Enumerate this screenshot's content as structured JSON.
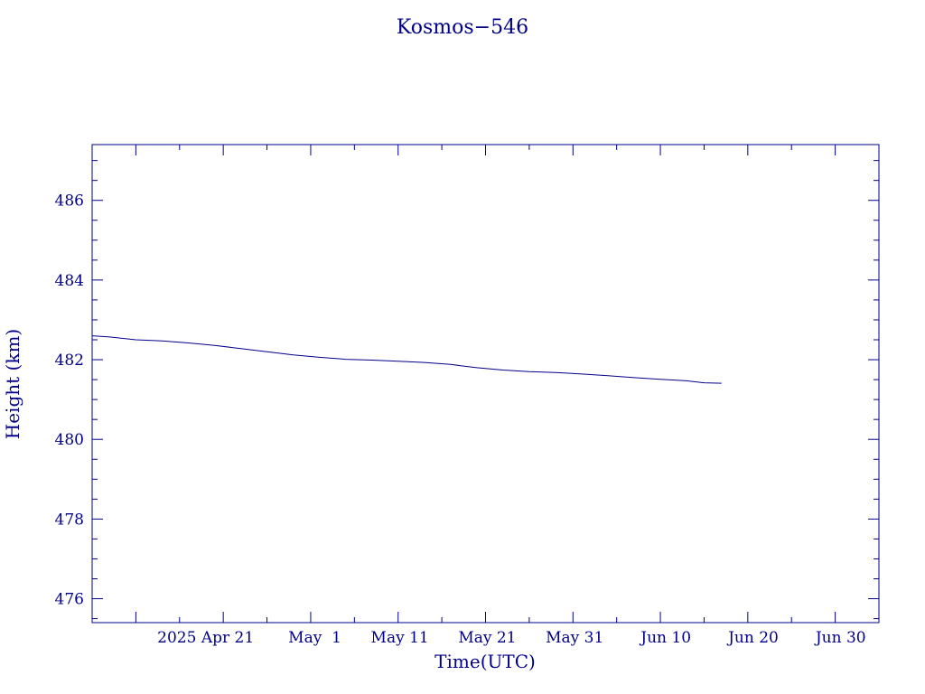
{
  "chart_data": {
    "type": "line",
    "title": "Kosmos−546",
    "xlabel": "Time(UTC)",
    "ylabel": "Height (km)",
    "color": "#00008b",
    "background": "#ffffff",
    "grid": false,
    "legend": "none",
    "xlim": [
      "2025-04-06",
      "2025-07-05"
    ],
    "ylim": [
      475.4,
      487.4
    ],
    "x_ticks": [
      {
        "date": "2025-04-21",
        "label": "2025 Apr 21"
      },
      {
        "date": "2025-05-01",
        "label": "May  1"
      },
      {
        "date": "2025-05-11",
        "label": "May 11"
      },
      {
        "date": "2025-05-21",
        "label": "May 21"
      },
      {
        "date": "2025-05-31",
        "label": "May 31"
      },
      {
        "date": "2025-06-10",
        "label": "Jun 10"
      },
      {
        "date": "2025-06-20",
        "label": "Jun 20"
      },
      {
        "date": "2025-06-30",
        "label": "Jun 30"
      }
    ],
    "y_ticks": [
      {
        "value": 476,
        "label": "476"
      },
      {
        "value": 478,
        "label": "478"
      },
      {
        "value": 480,
        "label": "480"
      },
      {
        "value": 482,
        "label": "482"
      },
      {
        "value": 484,
        "label": "484"
      },
      {
        "value": 486,
        "label": "486"
      }
    ],
    "series": [
      {
        "points": [
          {
            "x": "2025-04-06",
            "y": 482.6
          },
          {
            "x": "2025-04-08",
            "y": 482.57
          },
          {
            "x": "2025-04-11",
            "y": 482.5
          },
          {
            "x": "2025-04-14",
            "y": 482.47
          },
          {
            "x": "2025-04-17",
            "y": 482.42
          },
          {
            "x": "2025-04-20",
            "y": 482.36
          },
          {
            "x": "2025-04-23",
            "y": 482.28
          },
          {
            "x": "2025-04-26",
            "y": 482.2
          },
          {
            "x": "2025-04-29",
            "y": 482.12
          },
          {
            "x": "2025-05-02",
            "y": 482.06
          },
          {
            "x": "2025-05-05",
            "y": 482.01
          },
          {
            "x": "2025-05-08",
            "y": 481.99
          },
          {
            "x": "2025-05-11",
            "y": 481.96
          },
          {
            "x": "2025-05-14",
            "y": 481.93
          },
          {
            "x": "2025-05-17",
            "y": 481.88
          },
          {
            "x": "2025-05-20",
            "y": 481.8
          },
          {
            "x": "2025-05-23",
            "y": 481.74
          },
          {
            "x": "2025-05-26",
            "y": 481.7
          },
          {
            "x": "2025-05-29",
            "y": 481.68
          },
          {
            "x": "2025-06-01",
            "y": 481.64
          },
          {
            "x": "2025-06-04",
            "y": 481.6
          },
          {
            "x": "2025-06-07",
            "y": 481.55
          },
          {
            "x": "2025-06-10",
            "y": 481.51
          },
          {
            "x": "2025-06-13",
            "y": 481.47
          },
          {
            "x": "2025-06-15",
            "y": 481.42
          },
          {
            "x": "2025-06-17",
            "y": 481.41
          }
        ]
      }
    ]
  }
}
